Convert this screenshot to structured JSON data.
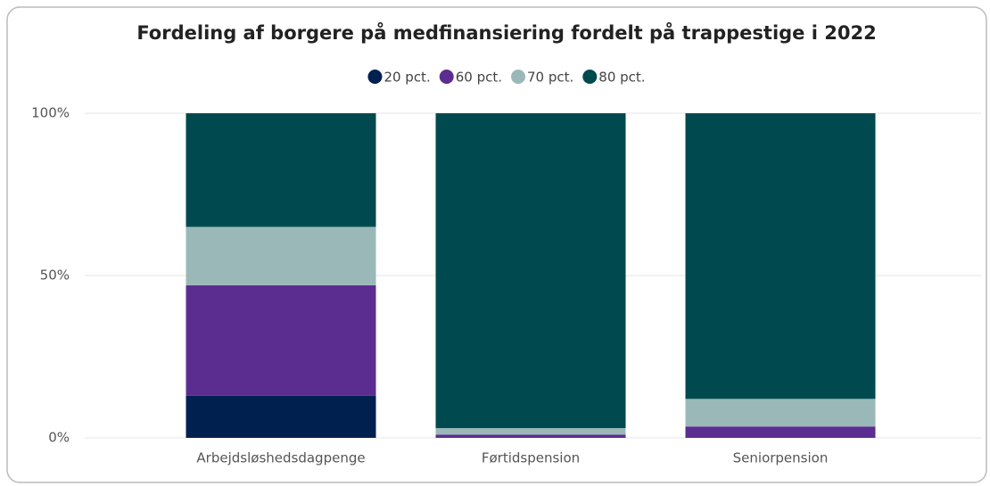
{
  "chart_data": {
    "type": "stacked_bar",
    "title": "Fordeling af borgere på medfinansiering fordelt på trappestige i 2022",
    "categories": [
      "Arbejdsløshedsdagpenge",
      "Førtidspension",
      "Seniorpension"
    ],
    "series": [
      {
        "name": "20 pct.",
        "color": "#002050",
        "values": [
          13,
          0,
          0
        ]
      },
      {
        "name": "60 pct.",
        "color": "#5c2d91",
        "values": [
          34,
          1,
          3.5
        ]
      },
      {
        "name": "70 pct.",
        "color": "#9ab8b8",
        "values": [
          18,
          2,
          8.5
        ]
      },
      {
        "name": "80 pct.",
        "color": "#004a4f",
        "values": [
          35,
          97,
          88
        ]
      }
    ],
    "ylim": [
      0,
      100
    ],
    "yticks": [
      {
        "value": 0,
        "label": "0%"
      },
      {
        "value": 50,
        "label": "50%"
      },
      {
        "value": 100,
        "label": "100%"
      }
    ],
    "grid": true
  }
}
